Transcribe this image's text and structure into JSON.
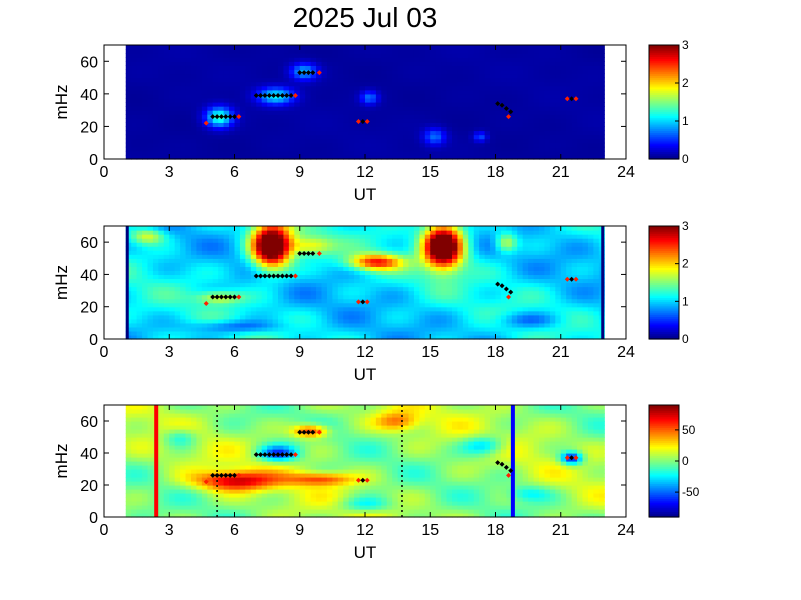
{
  "title": "2025 Jul 03",
  "colors": {
    "map_low": "#00008f",
    "map_high": "#800000",
    "marker_black": "#000000",
    "marker_red": "#ff2000",
    "line_red": "#ff0000",
    "line_blue": "#0000ff"
  },
  "chart_data": [
    {
      "type": "heatmap",
      "panel": "top",
      "xlabel": "UT",
      "ylabel": "mHz",
      "xlim": [
        0,
        24
      ],
      "ylim": [
        0,
        70
      ],
      "xticks": [
        "0",
        "3",
        "6",
        "9",
        "12",
        "15",
        "18",
        "21",
        "24"
      ],
      "yticks": [
        "0",
        "20",
        "40",
        "60"
      ],
      "data_xrange": [
        1,
        23
      ],
      "colorbar": {
        "min": 0,
        "max": 3,
        "ticks": [
          "0",
          "1",
          "2",
          "3"
        ]
      },
      "background": 0.1,
      "blobs": [
        {
          "t": 5.3,
          "f": 26,
          "w": 0.6,
          "h": 6,
          "v": 1.2
        },
        {
          "t": 7.9,
          "f": 39,
          "w": 0.8,
          "h": 5,
          "v": 1.0
        },
        {
          "t": 9.2,
          "f": 54,
          "w": 0.6,
          "h": 5,
          "v": 0.8
        },
        {
          "t": 12.2,
          "f": 38,
          "w": 0.4,
          "h": 4,
          "v": 0.6
        },
        {
          "t": 15.2,
          "f": 14,
          "w": 0.5,
          "h": 5,
          "v": 0.6
        },
        {
          "t": 17.3,
          "f": 14,
          "w": 0.3,
          "h": 3,
          "v": 0.5
        }
      ]
    },
    {
      "type": "heatmap",
      "panel": "middle",
      "xlabel": "UT",
      "ylabel": "mHz",
      "xlim": [
        0,
        24
      ],
      "ylim": [
        0,
        70
      ],
      "xticks": [
        "0",
        "3",
        "6",
        "9",
        "12",
        "15",
        "18",
        "21",
        "24"
      ],
      "yticks": [
        "0",
        "20",
        "40",
        "60"
      ],
      "data_xrange": [
        1,
        23
      ],
      "colorbar": {
        "min": 0,
        "max": 3,
        "ticks": [
          "0",
          "1",
          "2",
          "3"
        ]
      },
      "background": 1.05,
      "blobs": [
        {
          "t": 7.7,
          "f": 58,
          "w": 0.9,
          "h": 14,
          "v": 2.6
        },
        {
          "t": 15.6,
          "f": 58,
          "w": 0.9,
          "h": 14,
          "v": 2.6
        },
        {
          "t": 12.5,
          "f": 48,
          "w": 1.2,
          "h": 5,
          "v": 1.4
        },
        {
          "t": 9.5,
          "f": 58,
          "w": 1.0,
          "h": 6,
          "v": 0.8
        },
        {
          "t": 5.3,
          "f": 26,
          "w": 1.0,
          "h": 4,
          "v": 0.7
        },
        {
          "t": 2.0,
          "f": 64,
          "w": 0.8,
          "h": 5,
          "v": 0.8
        },
        {
          "t": 18.5,
          "f": 60,
          "w": 0.5,
          "h": 6,
          "v": 0.8
        },
        {
          "t": 6.0,
          "f": 8,
          "w": 2.0,
          "h": 4,
          "v": -0.5
        },
        {
          "t": 19.5,
          "f": 12,
          "w": 1.5,
          "h": 5,
          "v": -0.4
        }
      ]
    },
    {
      "type": "heatmap",
      "panel": "bottom",
      "xlabel": "UT",
      "ylabel": "mHz",
      "xlim": [
        0,
        24
      ],
      "ylim": [
        0,
        70
      ],
      "xticks": [
        "0",
        "3",
        "6",
        "9",
        "12",
        "15",
        "18",
        "21",
        "24"
      ],
      "yticks": [
        "0",
        "20",
        "40",
        "60"
      ],
      "data_xrange": [
        1,
        23
      ],
      "colorbar": {
        "min": -90,
        "max": 90,
        "ticks": [
          "50",
          "0",
          "-50"
        ],
        "tick_values": [
          50,
          0,
          -50
        ]
      },
      "background": 5,
      "blobs": [
        {
          "t": 6.0,
          "f": 23,
          "w": 1.8,
          "h": 6,
          "v": 70
        },
        {
          "t": 10.0,
          "f": 24,
          "w": 1.5,
          "h": 4,
          "v": 50
        },
        {
          "t": 9.5,
          "f": 54,
          "w": 0.8,
          "h": 4,
          "v": 65
        },
        {
          "t": 8.0,
          "f": 40,
          "w": 0.9,
          "h": 5,
          "v": -60
        },
        {
          "t": 21.5,
          "f": 37,
          "w": 0.5,
          "h": 4,
          "v": -75
        },
        {
          "t": 13.5,
          "f": 60,
          "w": 1.0,
          "h": 6,
          "v": 40
        },
        {
          "t": 3.5,
          "f": 50,
          "w": 0.8,
          "h": 6,
          "v": -30
        },
        {
          "t": 17.5,
          "f": 45,
          "w": 1.0,
          "h": 6,
          "v": -40
        },
        {
          "t": 12.0,
          "f": 8,
          "w": 1.2,
          "h": 5,
          "v": -30
        },
        {
          "t": 19.5,
          "f": 15,
          "w": 1.0,
          "h": 5,
          "v": -25
        }
      ],
      "vlines": [
        {
          "t": 2.4,
          "color": "#ff0000",
          "style": "solid"
        },
        {
          "t": 18.8,
          "color": "#0000ff",
          "style": "solid"
        },
        {
          "t": 5.2,
          "color": "#000000",
          "style": "dotted"
        },
        {
          "t": 13.7,
          "color": "#000000",
          "style": "dotted"
        }
      ]
    }
  ],
  "markers": [
    {
      "t": 4.7,
      "f": 22,
      "color": "red"
    },
    {
      "t": 5.0,
      "f": 26,
      "color": "black"
    },
    {
      "t": 5.2,
      "f": 26,
      "color": "black"
    },
    {
      "t": 5.4,
      "f": 26,
      "color": "black"
    },
    {
      "t": 5.6,
      "f": 26,
      "color": "black"
    },
    {
      "t": 5.8,
      "f": 26,
      "color": "black"
    },
    {
      "t": 6.0,
      "f": 26,
      "color": "black"
    },
    {
      "t": 6.2,
      "f": 26,
      "color": "red"
    },
    {
      "t": 7.0,
      "f": 39,
      "color": "black"
    },
    {
      "t": 7.2,
      "f": 39,
      "color": "black"
    },
    {
      "t": 7.4,
      "f": 39,
      "color": "black"
    },
    {
      "t": 7.6,
      "f": 39,
      "color": "black"
    },
    {
      "t": 7.8,
      "f": 39,
      "color": "black"
    },
    {
      "t": 8.0,
      "f": 39,
      "color": "black"
    },
    {
      "t": 8.2,
      "f": 39,
      "color": "black"
    },
    {
      "t": 8.4,
      "f": 39,
      "color": "black"
    },
    {
      "t": 8.6,
      "f": 39,
      "color": "black"
    },
    {
      "t": 8.8,
      "f": 39,
      "color": "red"
    },
    {
      "t": 9.0,
      "f": 53,
      "color": "black"
    },
    {
      "t": 9.2,
      "f": 53,
      "color": "black"
    },
    {
      "t": 9.4,
      "f": 53,
      "color": "black"
    },
    {
      "t": 9.6,
      "f": 53,
      "color": "black"
    },
    {
      "t": 9.9,
      "f": 53,
      "color": "red"
    },
    {
      "t": 11.7,
      "f": 23,
      "color": "red"
    },
    {
      "t": 11.9,
      "f": 23,
      "color": "black"
    },
    {
      "t": 12.1,
      "f": 23,
      "color": "red"
    },
    {
      "t": 18.1,
      "f": 34,
      "color": "black"
    },
    {
      "t": 18.3,
      "f": 33,
      "color": "black"
    },
    {
      "t": 18.5,
      "f": 31,
      "color": "black"
    },
    {
      "t": 18.7,
      "f": 29,
      "color": "black"
    },
    {
      "t": 18.6,
      "f": 26,
      "color": "red"
    },
    {
      "t": 21.3,
      "f": 37,
      "color": "red"
    },
    {
      "t": 21.5,
      "f": 37,
      "color": "black"
    },
    {
      "t": 21.7,
      "f": 37,
      "color": "red"
    }
  ]
}
